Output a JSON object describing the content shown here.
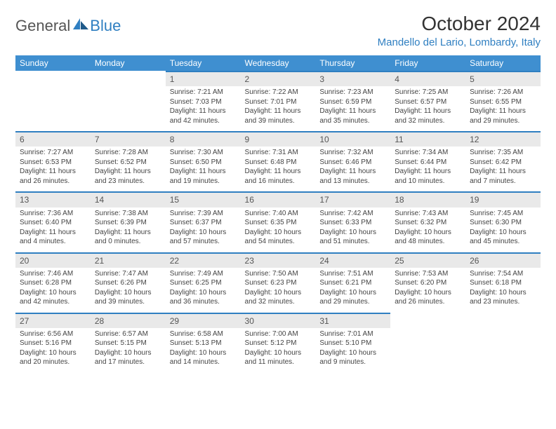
{
  "logo": {
    "part1": "General",
    "part2": "Blue"
  },
  "title": "October 2024",
  "location": "Mandello del Lario, Lombardy, Italy",
  "colors": {
    "header_bg": "#3f8fd0",
    "accent": "#2f7fc1",
    "daynum_bg": "#e9e9e9",
    "text": "#444444"
  },
  "weekdays": [
    "Sunday",
    "Monday",
    "Tuesday",
    "Wednesday",
    "Thursday",
    "Friday",
    "Saturday"
  ],
  "leading_blanks": 2,
  "days": [
    {
      "n": "1",
      "sr": "7:21 AM",
      "ss": "7:03 PM",
      "dl": "11 hours and 42 minutes."
    },
    {
      "n": "2",
      "sr": "7:22 AM",
      "ss": "7:01 PM",
      "dl": "11 hours and 39 minutes."
    },
    {
      "n": "3",
      "sr": "7:23 AM",
      "ss": "6:59 PM",
      "dl": "11 hours and 35 minutes."
    },
    {
      "n": "4",
      "sr": "7:25 AM",
      "ss": "6:57 PM",
      "dl": "11 hours and 32 minutes."
    },
    {
      "n": "5",
      "sr": "7:26 AM",
      "ss": "6:55 PM",
      "dl": "11 hours and 29 minutes."
    },
    {
      "n": "6",
      "sr": "7:27 AM",
      "ss": "6:53 PM",
      "dl": "11 hours and 26 minutes."
    },
    {
      "n": "7",
      "sr": "7:28 AM",
      "ss": "6:52 PM",
      "dl": "11 hours and 23 minutes."
    },
    {
      "n": "8",
      "sr": "7:30 AM",
      "ss": "6:50 PM",
      "dl": "11 hours and 19 minutes."
    },
    {
      "n": "9",
      "sr": "7:31 AM",
      "ss": "6:48 PM",
      "dl": "11 hours and 16 minutes."
    },
    {
      "n": "10",
      "sr": "7:32 AM",
      "ss": "6:46 PM",
      "dl": "11 hours and 13 minutes."
    },
    {
      "n": "11",
      "sr": "7:34 AM",
      "ss": "6:44 PM",
      "dl": "11 hours and 10 minutes."
    },
    {
      "n": "12",
      "sr": "7:35 AM",
      "ss": "6:42 PM",
      "dl": "11 hours and 7 minutes."
    },
    {
      "n": "13",
      "sr": "7:36 AM",
      "ss": "6:40 PM",
      "dl": "11 hours and 4 minutes."
    },
    {
      "n": "14",
      "sr": "7:38 AM",
      "ss": "6:39 PM",
      "dl": "11 hours and 0 minutes."
    },
    {
      "n": "15",
      "sr": "7:39 AM",
      "ss": "6:37 PM",
      "dl": "10 hours and 57 minutes."
    },
    {
      "n": "16",
      "sr": "7:40 AM",
      "ss": "6:35 PM",
      "dl": "10 hours and 54 minutes."
    },
    {
      "n": "17",
      "sr": "7:42 AM",
      "ss": "6:33 PM",
      "dl": "10 hours and 51 minutes."
    },
    {
      "n": "18",
      "sr": "7:43 AM",
      "ss": "6:32 PM",
      "dl": "10 hours and 48 minutes."
    },
    {
      "n": "19",
      "sr": "7:45 AM",
      "ss": "6:30 PM",
      "dl": "10 hours and 45 minutes."
    },
    {
      "n": "20",
      "sr": "7:46 AM",
      "ss": "6:28 PM",
      "dl": "10 hours and 42 minutes."
    },
    {
      "n": "21",
      "sr": "7:47 AM",
      "ss": "6:26 PM",
      "dl": "10 hours and 39 minutes."
    },
    {
      "n": "22",
      "sr": "7:49 AM",
      "ss": "6:25 PM",
      "dl": "10 hours and 36 minutes."
    },
    {
      "n": "23",
      "sr": "7:50 AM",
      "ss": "6:23 PM",
      "dl": "10 hours and 32 minutes."
    },
    {
      "n": "24",
      "sr": "7:51 AM",
      "ss": "6:21 PM",
      "dl": "10 hours and 29 minutes."
    },
    {
      "n": "25",
      "sr": "7:53 AM",
      "ss": "6:20 PM",
      "dl": "10 hours and 26 minutes."
    },
    {
      "n": "26",
      "sr": "7:54 AM",
      "ss": "6:18 PM",
      "dl": "10 hours and 23 minutes."
    },
    {
      "n": "27",
      "sr": "6:56 AM",
      "ss": "5:16 PM",
      "dl": "10 hours and 20 minutes."
    },
    {
      "n": "28",
      "sr": "6:57 AM",
      "ss": "5:15 PM",
      "dl": "10 hours and 17 minutes."
    },
    {
      "n": "29",
      "sr": "6:58 AM",
      "ss": "5:13 PM",
      "dl": "10 hours and 14 minutes."
    },
    {
      "n": "30",
      "sr": "7:00 AM",
      "ss": "5:12 PM",
      "dl": "10 hours and 11 minutes."
    },
    {
      "n": "31",
      "sr": "7:01 AM",
      "ss": "5:10 PM",
      "dl": "10 hours and 9 minutes."
    }
  ],
  "labels": {
    "sunrise": "Sunrise: ",
    "sunset": "Sunset: ",
    "daylight": "Daylight: "
  }
}
